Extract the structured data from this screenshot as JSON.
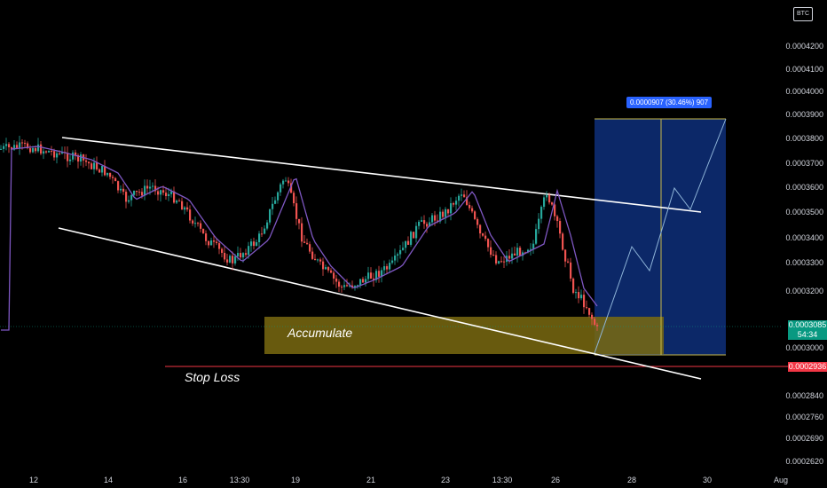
{
  "chart_data": {
    "type": "candlestick",
    "ylim": [
      0.000262,
      0.000444
    ],
    "price_ticks": [
      "0.0004200",
      "0.0004100",
      "0.0004000",
      "0.0003900",
      "0.0003800",
      "0.0003700",
      "0.0003600",
      "0.0003500",
      "0.0003400",
      "0.0003300",
      "0.0003200",
      "0.0003000",
      "0.0002840",
      "0.0002760",
      "0.0002690",
      "0.0002620"
    ],
    "time_ticks": [
      "12",
      "14",
      "16",
      "13:30",
      "19",
      "21",
      "23",
      "13:30",
      "26",
      "28",
      "30",
      "Aug"
    ],
    "current_price": "0.0003085",
    "countdown": "54:34",
    "stop_loss_price": "0.0002936",
    "currency_badge": "BTC",
    "annotations": {
      "accumulate": "Accumulate",
      "stop_loss": "Stop Loss",
      "measure": "0.0000907 (30.46%) 907"
    },
    "colors": {
      "up": "#26a69a",
      "down": "#ef5350",
      "ma": "#7e57c2",
      "channel": "#ffffff",
      "accumulate_zone": "#7a6a10",
      "target_zone": "#0d2a6e",
      "stop_loss": "#f23645",
      "measure_badge": "#2962ff"
    }
  }
}
